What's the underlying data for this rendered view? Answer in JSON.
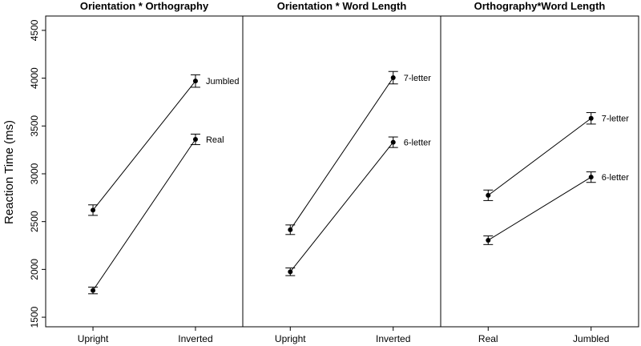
{
  "chart_data": {
    "type": "line",
    "ylabel": "Reaction Time (ms)",
    "ylim": [
      1400,
      4650
    ],
    "yticks": [
      1500,
      2000,
      2500,
      3000,
      3500,
      4000,
      4500
    ],
    "ytick_labels": [
      "1500",
      "2000",
      "2500",
      "3000",
      "3500",
      "4000",
      "4500"
    ],
    "grid": false,
    "panels": [
      {
        "title": "Orientation * Orthography",
        "categories": [
          "Upright",
          "Inverted"
        ],
        "series": [
          {
            "name": "Jumbled",
            "values": [
              2620,
              3970
            ],
            "error": [
              55,
              65
            ]
          },
          {
            "name": "Real",
            "values": [
              1780,
              3360
            ],
            "error": [
              35,
              55
            ]
          }
        ]
      },
      {
        "title": "Orientation * Word Length",
        "categories": [
          "Upright",
          "Inverted"
        ],
        "series": [
          {
            "name": "7-letter",
            "values": [
              2415,
              4005
            ],
            "error": [
              50,
              65
            ]
          },
          {
            "name": "6-letter",
            "values": [
              1975,
              3330
            ],
            "error": [
              40,
              55
            ]
          }
        ]
      },
      {
        "title": "Orthography*Word Length",
        "categories": [
          "Real",
          "Jumbled"
        ],
        "series": [
          {
            "name": "7-letter",
            "values": [
              2775,
              3580
            ],
            "error": [
              55,
              60
            ]
          },
          {
            "name": "6-letter",
            "values": [
              2305,
              2965
            ],
            "error": [
              45,
              55
            ]
          }
        ]
      }
    ]
  }
}
